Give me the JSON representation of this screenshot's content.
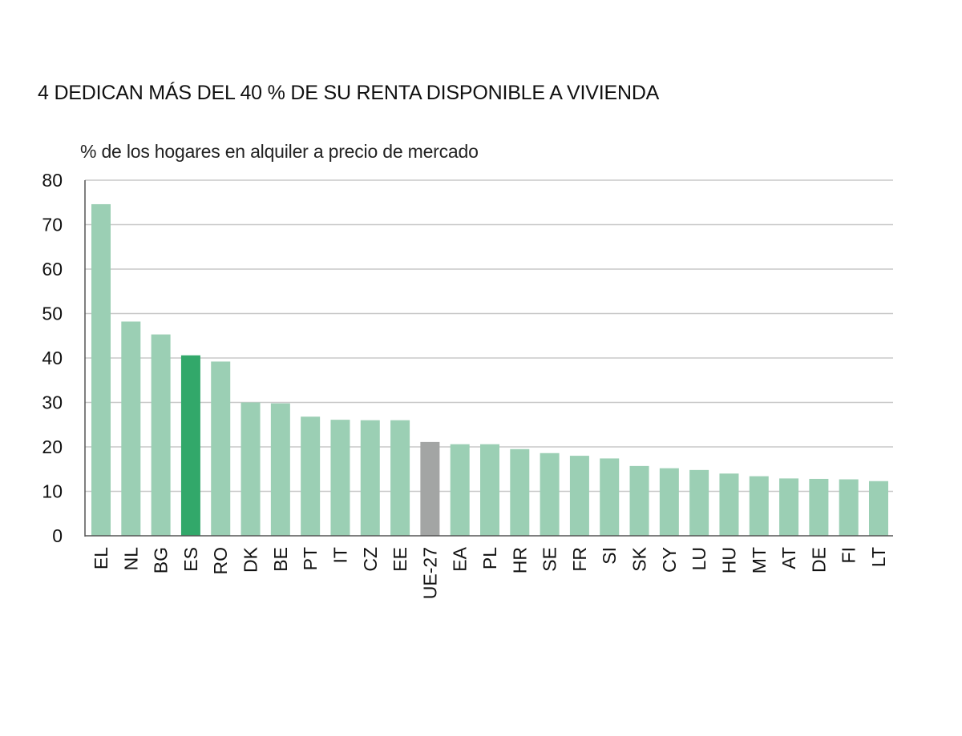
{
  "chart_data": {
    "type": "bar",
    "title": "4  DEDICAN MÁS DEL 40 % DE SU RENTA DISPONIBLE A VIVIENDA",
    "ylabel": "% de los hogares en alquiler a precio de mercado",
    "xlabel": "",
    "ylim": [
      0,
      80
    ],
    "yticks": [
      0,
      10,
      20,
      30,
      40,
      50,
      60,
      70,
      80
    ],
    "grid": true,
    "categories": [
      "EL",
      "NL",
      "BG",
      "ES",
      "RO",
      "DK",
      "BE",
      "PT",
      "IT",
      "CZ",
      "EE",
      "UE-27",
      "EA",
      "PL",
      "HR",
      "SE",
      "FR",
      "SI",
      "SK",
      "CY",
      "LU",
      "HU",
      "MT",
      "AT",
      "DE",
      "FI",
      "LT"
    ],
    "values": [
      74.6,
      48.2,
      45.3,
      40.6,
      39.2,
      30.0,
      29.8,
      26.8,
      26.1,
      26.0,
      26.0,
      21.1,
      20.6,
      20.6,
      19.5,
      18.6,
      18.0,
      17.4,
      15.7,
      15.2,
      14.8,
      14.0,
      13.4,
      12.9,
      12.8,
      12.7,
      12.3
    ]
  },
  "colors": {
    "default_bar": "#9bcfb4",
    "highlight_bar": "#32a86a",
    "aggregate_bar": "#a3a5a4",
    "grid": "#c8c8c8",
    "axis": "#555555"
  },
  "highlight": {
    "ES": "highlight_bar",
    "UE-27": "aggregate_bar"
  }
}
